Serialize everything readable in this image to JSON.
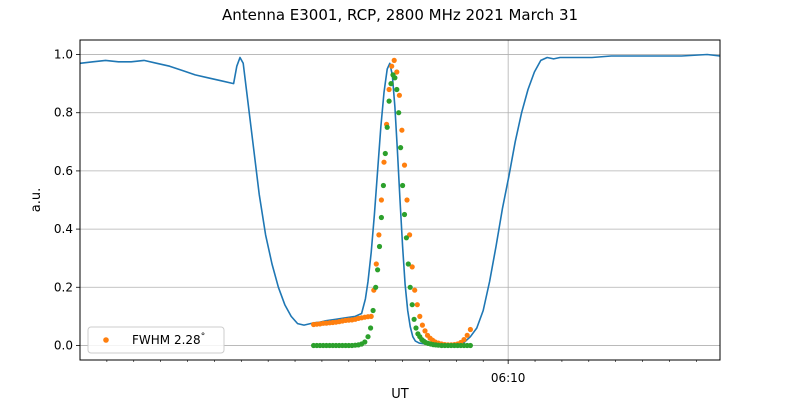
{
  "chart_data": {
    "type": "line",
    "title": "Antenna E3001, RCP, 2800 MHz 2021 March 31",
    "xlabel": "UT",
    "ylabel": "a.u.",
    "xlim": [
      0,
      100
    ],
    "ylim": [
      -0.05,
      1.05
    ],
    "y_ticks": [
      0.0,
      0.2,
      0.4,
      0.6,
      0.8,
      1.0
    ],
    "y_tick_labels": [
      "0.0",
      "0.2",
      "0.4",
      "0.6",
      "0.8",
      "1.0"
    ],
    "x_labeled_tick": {
      "x": 66.9,
      "label": "06:10"
    },
    "x_minor_ticks": [
      4.2,
      8.4,
      12.6,
      16.8,
      21.0,
      25.2,
      29.4,
      33.6,
      37.8,
      42.0,
      46.2,
      50.4,
      54.6,
      58.8,
      63.0,
      71.1,
      75.3,
      79.5,
      83.7,
      87.9,
      92.1,
      96.3
    ],
    "grid": true,
    "legend_position": "lower-left",
    "series": [
      {
        "kind": "line",
        "color": "#1f77b4",
        "x": [
          0,
          2,
          4,
          6,
          8,
          10,
          12,
          14,
          16,
          18,
          20,
          22,
          24,
          24.5,
          25.0,
          25.5,
          26,
          27,
          28,
          29,
          30,
          31,
          32,
          33,
          34,
          35,
          36,
          36.6,
          37.5,
          38.5,
          40,
          41.5,
          43,
          44,
          44.6,
          45,
          45.5,
          46,
          46.5,
          47,
          47.5,
          48,
          48.4,
          48.8,
          49.2,
          49.6,
          50,
          50.4,
          50.8,
          51.2,
          51.6,
          52,
          52.4,
          53,
          54,
          55,
          56,
          57,
          58,
          59,
          60,
          61,
          62,
          63,
          64,
          65,
          66,
          67,
          68,
          69,
          70,
          71,
          72,
          73,
          74,
          75,
          77,
          80,
          83,
          86,
          90,
          94,
          98,
          100
        ],
        "y": [
          0.97,
          0.975,
          0.98,
          0.975,
          0.975,
          0.98,
          0.97,
          0.96,
          0.945,
          0.93,
          0.92,
          0.91,
          0.9,
          0.96,
          0.99,
          0.97,
          0.88,
          0.7,
          0.52,
          0.38,
          0.28,
          0.2,
          0.14,
          0.1,
          0.075,
          0.07,
          0.075,
          0.078,
          0.08,
          0.085,
          0.09,
          0.095,
          0.1,
          0.11,
          0.16,
          0.22,
          0.32,
          0.45,
          0.6,
          0.75,
          0.87,
          0.95,
          0.97,
          0.93,
          0.82,
          0.67,
          0.5,
          0.34,
          0.21,
          0.12,
          0.065,
          0.03,
          0.015,
          0.008,
          0.005,
          0.003,
          0.002,
          0.002,
          0.003,
          0.005,
          0.01,
          0.03,
          0.06,
          0.12,
          0.22,
          0.34,
          0.47,
          0.58,
          0.7,
          0.8,
          0.88,
          0.94,
          0.98,
          0.99,
          0.985,
          0.99,
          0.99,
          0.99,
          0.995,
          0.995,
          0.995,
          0.995,
          1.0,
          0.995
        ]
      },
      {
        "kind": "scatter",
        "name": "FWHM 2.28$^{\\circ}$",
        "legend_text": "FWHM 2.28",
        "legend_superscript": "°",
        "color": "#ff7f0e",
        "x": [
          36.5,
          37.0,
          37.5,
          38.0,
          38.5,
          39.0,
          39.5,
          40.0,
          40.5,
          41.0,
          41.5,
          42.0,
          42.5,
          43.0,
          43.5,
          44.0,
          44.5,
          45.0,
          45.5,
          45.9,
          46.3,
          46.7,
          47.1,
          47.5,
          47.9,
          48.3,
          48.7,
          49.1,
          49.5,
          49.9,
          50.3,
          50.7,
          51.1,
          51.5,
          51.9,
          52.3,
          52.7,
          53.1,
          53.5,
          53.9,
          54.3,
          54.7,
          55.1,
          55.5,
          56.0,
          56.5,
          57.0,
          57.5,
          58.0,
          58.5,
          59.0,
          59.5,
          60.0,
          60.5,
          61.0
        ],
        "y": [
          0.072,
          0.073,
          0.074,
          0.076,
          0.077,
          0.078,
          0.079,
          0.08,
          0.082,
          0.084,
          0.086,
          0.087,
          0.088,
          0.09,
          0.093,
          0.095,
          0.097,
          0.099,
          0.1,
          0.19,
          0.28,
          0.38,
          0.5,
          0.63,
          0.76,
          0.88,
          0.96,
          0.98,
          0.94,
          0.86,
          0.74,
          0.62,
          0.5,
          0.38,
          0.27,
          0.19,
          0.14,
          0.1,
          0.07,
          0.05,
          0.035,
          0.025,
          0.018,
          0.012,
          0.008,
          0.005,
          0.003,
          0.002,
          0.002,
          0.003,
          0.005,
          0.01,
          0.02,
          0.035,
          0.055
        ]
      },
      {
        "kind": "scatter",
        "color": "#2ca02c",
        "x": [
          36.5,
          37.0,
          37.5,
          38.0,
          38.5,
          39.0,
          39.5,
          40.0,
          40.5,
          41.0,
          41.5,
          42.0,
          42.5,
          43.0,
          43.5,
          44.0,
          44.5,
          45.0,
          45.4,
          45.8,
          46.2,
          46.5,
          46.8,
          47.1,
          47.4,
          47.7,
          48.0,
          48.3,
          48.6,
          48.9,
          49.2,
          49.5,
          49.8,
          50.1,
          50.4,
          50.7,
          51.0,
          51.3,
          51.6,
          51.9,
          52.2,
          52.5,
          52.8,
          53.1,
          53.4,
          53.7,
          54.0,
          54.4,
          54.8,
          55.2,
          55.6,
          56.0,
          56.5,
          57.0,
          57.5,
          58.0,
          58.5,
          59.0,
          59.5,
          60.0,
          60.5,
          61.0
        ],
        "y": [
          0.0,
          0.0,
          0.0,
          0.0,
          0.0,
          0.0,
          0.0,
          0.0,
          0.0,
          0.0,
          0.0,
          0.0,
          0.0,
          0.001,
          0.002,
          0.005,
          0.012,
          0.03,
          0.06,
          0.12,
          0.2,
          0.26,
          0.34,
          0.44,
          0.55,
          0.66,
          0.75,
          0.84,
          0.9,
          0.93,
          0.92,
          0.88,
          0.8,
          0.68,
          0.55,
          0.45,
          0.37,
          0.28,
          0.2,
          0.14,
          0.09,
          0.06,
          0.04,
          0.03,
          0.02,
          0.015,
          0.01,
          0.007,
          0.005,
          0.003,
          0.002,
          0.001,
          0.0,
          0.0,
          0.0,
          0.0,
          0.0,
          0.0,
          0.0,
          0.0,
          0.0,
          0.0
        ]
      }
    ]
  }
}
